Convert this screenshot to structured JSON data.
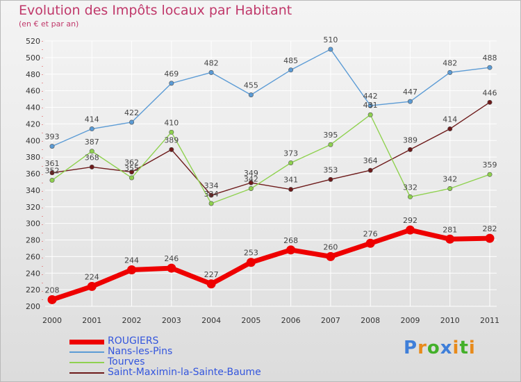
{
  "title": "Evolution des Impôts locaux par Habitant",
  "subtitle": "(en € et par an)",
  "logo": {
    "letters": [
      "P",
      "r",
      "o",
      "x",
      "i",
      "t",
      "i"
    ],
    "colors": [
      "#3f7fd9",
      "#e88a1a",
      "#43b02a",
      "#3f7fd9",
      "#e88a1a",
      "#43b02a",
      "#e88a1a"
    ]
  },
  "chart_data": {
    "type": "line",
    "x": [
      "2000",
      "2001",
      "2002",
      "2003",
      "2004",
      "2005",
      "2006",
      "2007",
      "2008",
      "2009",
      "2010",
      "2011"
    ],
    "y_ticks": [
      "200",
      "220",
      "240",
      "260",
      "280",
      "300",
      "320",
      "340",
      "360",
      "380",
      "400",
      "420",
      "440",
      "460",
      "480",
      "500",
      "520"
    ],
    "ylim": [
      200,
      520
    ],
    "grid": true,
    "legend_position": "bottom-left",
    "series": [
      {
        "name": "ROUGIERS",
        "color": "#ee0000",
        "values": [
          208,
          224,
          244,
          246,
          227,
          253,
          268,
          260,
          276,
          292,
          281,
          282
        ]
      },
      {
        "name": "Nans-les-Pins",
        "color": "#5b9bd5",
        "values": [
          393,
          414,
          422,
          469,
          482,
          455,
          485,
          510,
          442,
          447,
          482,
          488
        ]
      },
      {
        "name": "Tourves",
        "color": "#8fd14f",
        "values": [
          352,
          387,
          355,
          410,
          324,
          342,
          373,
          395,
          431,
          332,
          342,
          359
        ]
      },
      {
        "name": "Saint-Maximin-la-Sainte-Baume",
        "color": "#6d1a1a",
        "values": [
          361,
          368,
          362,
          389,
          334,
          349,
          341,
          353,
          364,
          389,
          414,
          446
        ]
      }
    ]
  }
}
